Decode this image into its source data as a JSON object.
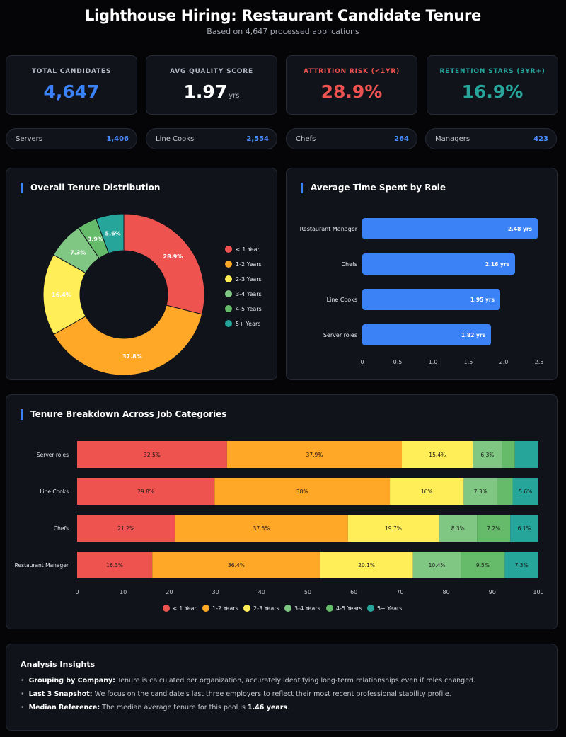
{
  "header": {
    "title": "Lighthouse Hiring: Restaurant Candidate Tenure",
    "subtitle": "Based on 4,647 processed applications"
  },
  "kpis": [
    {
      "label": "TOTAL CANDIDATES",
      "value": "4,647",
      "unit": "",
      "color": "#3b82f6",
      "label_color": "#b6bac6"
    },
    {
      "label": "AVG QUALITY SCORE",
      "value": "1.97",
      "unit": "yrs",
      "color": "#ffffff",
      "label_color": "#b6bac6"
    },
    {
      "label": "ATTRITION RISK (<1YR)",
      "value": "28.9%",
      "unit": "",
      "color": "#ef5350",
      "label_color": "#ef5350"
    },
    {
      "label": "RETENTION STARS (3YR+)",
      "value": "16.9%",
      "unit": "",
      "color": "#26a69a",
      "label_color": "#26a69a"
    }
  ],
  "role_counts": [
    {
      "label": "Servers",
      "value": "1,406"
    },
    {
      "label": "Line Cooks",
      "value": "2,554"
    },
    {
      "label": "Chefs",
      "value": "264"
    },
    {
      "label": "Managers",
      "value": "423"
    }
  ],
  "colors": {
    "lt1": "#ef5350",
    "y1_2": "#ffa726",
    "y2_3": "#ffee58",
    "y3_4": "#81c784",
    "y4_5": "#66bb6a",
    "y5p": "#26a69a",
    "bar": "#3b82f6",
    "accent": "#3b82f6"
  },
  "chart_data": [
    {
      "type": "pie",
      "title": "Overall Tenure Distribution",
      "labels": [
        "< 1 Year",
        "1-2 Years",
        "2-3 Years",
        "3-4 Years",
        "4-5 Years",
        "5+ Years"
      ],
      "values": [
        28.9,
        37.8,
        16.4,
        7.3,
        3.9,
        5.6
      ],
      "value_labels": [
        "28.9%",
        "37.8%",
        "16.4%",
        "7.3%",
        "3.9%",
        "5.6%"
      ],
      "legend": "right"
    },
    {
      "type": "bar",
      "orientation": "horizontal",
      "title": "Average Time Spent by Role",
      "categories": [
        "Restaurant Manager",
        "Chefs",
        "Line Cooks",
        "Server roles"
      ],
      "values": [
        2.48,
        2.16,
        1.95,
        1.82
      ],
      "value_labels": [
        "2.48 yrs",
        "2.16 yrs",
        "1.95 yrs",
        "1.82 yrs"
      ],
      "xlim": [
        0,
        2.5
      ],
      "xticks": [
        "0",
        "0.5",
        "1.0",
        "1.5",
        "2.0",
        "2.5"
      ]
    },
    {
      "type": "bar",
      "orientation": "horizontal",
      "stacked": true,
      "title": "Tenure Breakdown Across Job Categories",
      "categories": [
        "Server roles",
        "Line Cooks",
        "Chefs",
        "Restaurant Manager"
      ],
      "series": [
        {
          "name": "< 1 Year",
          "values": [
            32.5,
            29.8,
            21.2,
            16.3
          ],
          "labels": [
            "32.5%",
            "29.8%",
            "21.2%",
            "16.3%"
          ]
        },
        {
          "name": "1-2 Years",
          "values": [
            37.9,
            38,
            37.5,
            36.4
          ],
          "labels": [
            "37.9%",
            "38%",
            "37.5%",
            "36.4%"
          ]
        },
        {
          "name": "2-3 Years",
          "values": [
            15.4,
            16,
            19.7,
            20.1
          ],
          "labels": [
            "15.4%",
            "16%",
            "19.7%",
            "20.1%"
          ]
        },
        {
          "name": "3-4 Years",
          "values": [
            6.3,
            7.3,
            8.3,
            10.4
          ],
          "labels": [
            "6.3%",
            "7.3%",
            "8.3%",
            "10.4%"
          ]
        },
        {
          "name": "4-5 Years",
          "values": [
            2.8,
            3.3,
            7.2,
            9.5
          ],
          "labels": [
            "",
            "",
            "7.2%",
            "9.5%"
          ]
        },
        {
          "name": "5+ Years",
          "values": [
            5.1,
            5.6,
            6.1,
            7.3
          ],
          "labels": [
            "",
            "5.6%",
            "6.1%",
            "7.3%"
          ]
        }
      ],
      "xlim": [
        0,
        100
      ],
      "xticks": [
        "0",
        "10",
        "20",
        "30",
        "40",
        "50",
        "60",
        "70",
        "80",
        "90",
        "100"
      ],
      "legend": "bottom"
    }
  ],
  "insights": {
    "title": "Analysis Insights",
    "items": [
      {
        "bold": "Grouping by Company:",
        "text": " Tenure is calculated per organization, accurately identifying long-term relationships even if roles changed."
      },
      {
        "bold": "Last 3 Snapshot:",
        "text": " We focus on the candidate's last three employers to reflect their most recent professional stability profile."
      },
      {
        "bold": "Median Reference:",
        "text": " The median average tenure for this pool is ",
        "bold2": "1.46 years",
        "tail": "."
      }
    ]
  }
}
